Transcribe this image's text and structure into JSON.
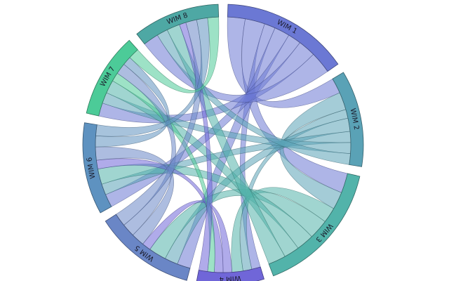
{
  "chart_data": {
    "type": "chord",
    "groups": [
      {
        "name": "WIM 1",
        "color": "#6b78d4"
      },
      {
        "name": "WIM 2",
        "color": "#5aa2b6"
      },
      {
        "name": "WIM 3",
        "color": "#52b3aa"
      },
      {
        "name": "WIM 4",
        "color": "#7066d8"
      },
      {
        "name": "WIM 5",
        "color": "#6a86c6"
      },
      {
        "name": "WIM 6",
        "color": "#5e92c0"
      },
      {
        "name": "WIM 7",
        "color": "#4ccb98"
      },
      {
        "name": "WIM 8",
        "color": "#4ea8a4"
      }
    ],
    "matrix": [
      [
        0,
        8,
        9,
        5,
        7,
        6,
        8,
        10
      ],
      [
        7,
        0,
        8,
        4,
        6,
        5,
        5,
        5
      ],
      [
        9,
        8,
        0,
        7,
        9,
        8,
        7,
        8
      ],
      [
        4,
        4,
        5,
        0,
        4,
        4,
        3,
        4
      ],
      [
        6,
        6,
        8,
        4,
        0,
        6,
        6,
        6
      ],
      [
        6,
        5,
        7,
        4,
        6,
        0,
        5,
        5
      ],
      [
        6,
        5,
        6,
        4,
        5,
        4,
        0,
        5
      ],
      [
        7,
        5,
        6,
        3,
        5,
        5,
        5,
        0
      ]
    ]
  }
}
